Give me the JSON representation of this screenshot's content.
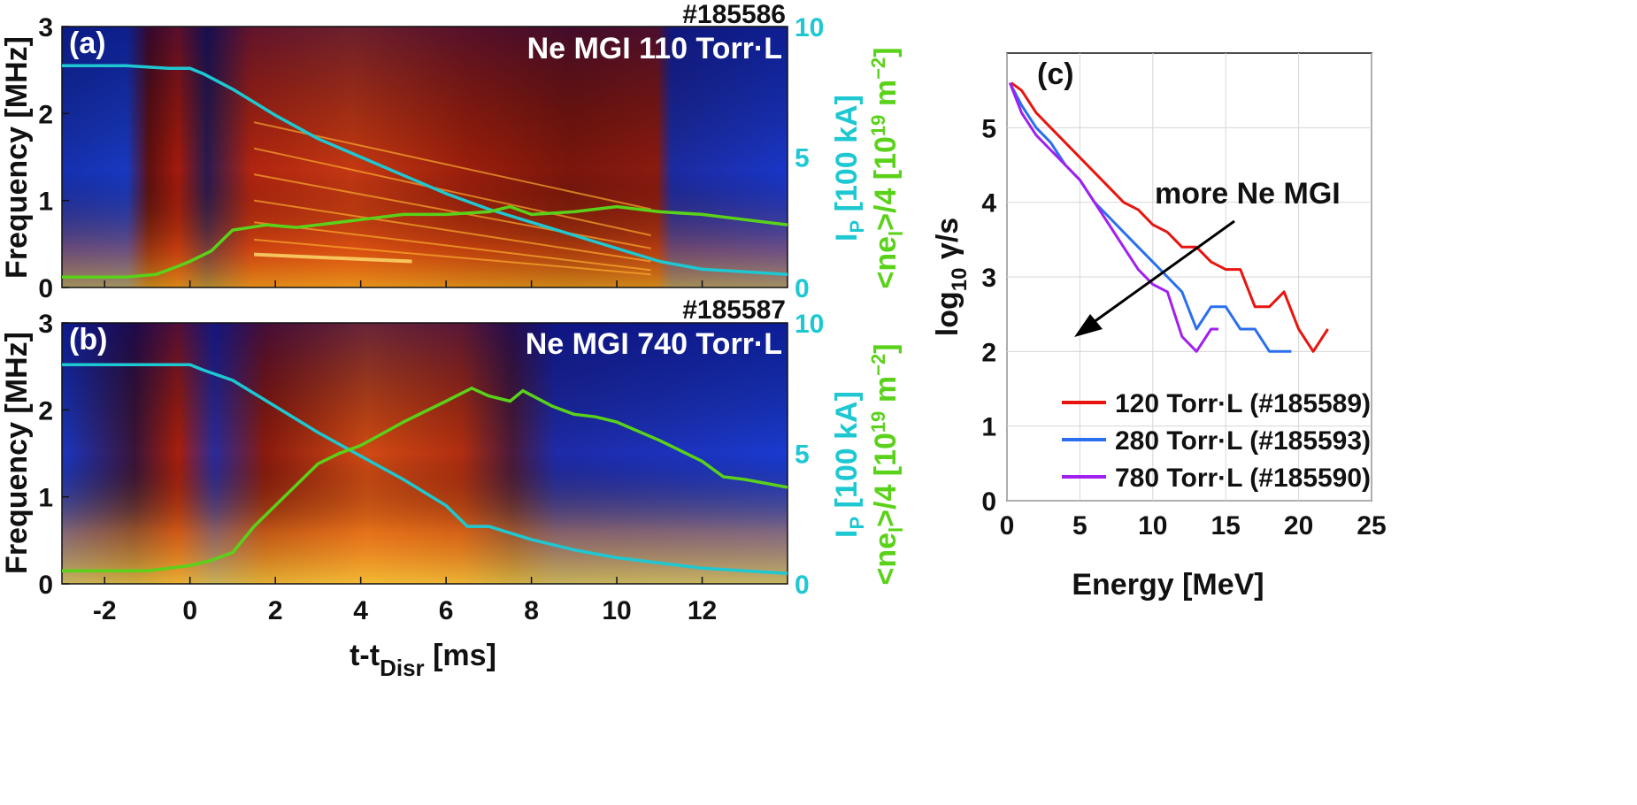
{
  "chart_data": [
    {
      "type": "heatmap",
      "panel_label": "(a)",
      "shot": "#185586",
      "annotation": "Ne MGI 110 Torr·L",
      "xlabel_main": "t-t",
      "xlabel_sub": "Disr",
      "xlabel_unit": " [ms]",
      "ylabel": "Frequency [MHz]",
      "xlim": [
        -3,
        14
      ],
      "ylim": [
        0,
        3
      ],
      "xticks": [
        "-2",
        "0",
        "2",
        "4",
        "6",
        "8",
        "10",
        "12"
      ],
      "xtick_values": [
        -2,
        0,
        2,
        4,
        6,
        8,
        10,
        12
      ],
      "yticks": [
        "0",
        "1",
        "2",
        "3"
      ],
      "ytick_values": [
        0,
        1,
        2,
        3
      ],
      "y2ticks": [
        "0",
        "5",
        "10"
      ],
      "y2tick_values": [
        0,
        5,
        10
      ],
      "y2lim": [
        0,
        10
      ],
      "y2label_ip": "I",
      "y2label_ip_sub": "P",
      "y2label_ip_unit": " [100 kA]",
      "y2label_ne": "<ne",
      "y2label_ne_sub": "l",
      "y2label_ne_rest": ">/4 [10",
      "y2label_ne_exp": "19",
      "y2label_ne_unit": " m",
      "y2label_ne_exp2": "−2",
      "y2label_ne_close": "]",
      "series": [
        {
          "name": "Ip",
          "color": "#1ec8d2",
          "x": [
            -3,
            -1.5,
            -0.5,
            0,
            0.3,
            1,
            2,
            3,
            4,
            5,
            6,
            7,
            8,
            9,
            10,
            11,
            12,
            13,
            14
          ],
          "y": [
            8.5,
            8.5,
            8.4,
            8.4,
            8.2,
            7.6,
            6.6,
            5.7,
            5.0,
            4.3,
            3.6,
            3.0,
            2.5,
            2.0,
            1.5,
            1.0,
            0.7,
            0.6,
            0.5
          ]
        },
        {
          "name": "ne",
          "color": "#5ad21a",
          "x": [
            -3,
            -1.5,
            -0.8,
            -0.3,
            0,
            0.5,
            1,
            1.8,
            2.5,
            3,
            4,
            5,
            6,
            7,
            7.5,
            8,
            9,
            10,
            10.5,
            11,
            12,
            13,
            14
          ],
          "y": [
            0.4,
            0.4,
            0.5,
            0.8,
            1.0,
            1.4,
            2.2,
            2.4,
            2.3,
            2.4,
            2.6,
            2.8,
            2.8,
            2.9,
            3.1,
            2.8,
            2.9,
            3.1,
            3.0,
            2.9,
            2.8,
            2.6,
            2.4
          ]
        }
      ]
    },
    {
      "type": "heatmap",
      "panel_label": "(b)",
      "shot": "#185587",
      "annotation": "Ne MGI 740 Torr·L",
      "xlabel_main": "t-t",
      "xlabel_sub": "Disr",
      "xlabel_unit": " [ms]",
      "ylabel": "Frequency [MHz]",
      "xlim": [
        -3,
        14
      ],
      "ylim": [
        0,
        3
      ],
      "xticks": [
        "-2",
        "0",
        "2",
        "4",
        "6",
        "8",
        "10",
        "12"
      ],
      "xtick_values": [
        -2,
        0,
        2,
        4,
        6,
        8,
        10,
        12
      ],
      "yticks": [
        "0",
        "1",
        "2",
        "3"
      ],
      "ytick_values": [
        0,
        1,
        2,
        3
      ],
      "y2ticks": [
        "0",
        "5",
        "10"
      ],
      "y2tick_values": [
        0,
        5,
        10
      ],
      "y2lim": [
        0,
        10
      ],
      "y2label_ip": "I",
      "y2label_ip_sub": "P",
      "y2label_ip_unit": " [100 kA]",
      "y2label_ne": "<ne",
      "y2label_ne_sub": "l",
      "y2label_ne_rest": ">/4 [10",
      "y2label_ne_exp": "19",
      "y2label_ne_unit": " m",
      "y2label_ne_exp2": "−2",
      "y2label_ne_close": "]",
      "series": [
        {
          "name": "Ip",
          "color": "#1ec8d2",
          "x": [
            -3,
            -1.5,
            -0.5,
            0,
            0.3,
            1,
            2,
            3,
            4,
            5,
            6,
            6.5,
            7,
            8,
            9,
            10,
            11,
            12,
            13,
            14
          ],
          "y": [
            8.4,
            8.4,
            8.4,
            8.4,
            8.2,
            7.8,
            6.8,
            5.8,
            4.9,
            4.0,
            3.0,
            2.2,
            2.2,
            1.7,
            1.3,
            1.0,
            0.8,
            0.6,
            0.5,
            0.4
          ]
        },
        {
          "name": "ne",
          "color": "#5ad21a",
          "x": [
            -3,
            -1,
            0,
            0.5,
            1,
            1.5,
            2,
            2.5,
            3,
            3.5,
            4,
            5,
            6,
            6.6,
            7,
            7.5,
            7.8,
            8.5,
            9,
            9.5,
            10,
            11,
            12,
            12.5,
            13,
            14
          ],
          "y": [
            0.5,
            0.5,
            0.7,
            0.9,
            1.2,
            2.2,
            3.0,
            3.8,
            4.6,
            5.0,
            5.3,
            6.2,
            7.0,
            7.5,
            7.2,
            7.0,
            7.4,
            6.8,
            6.5,
            6.4,
            6.2,
            5.5,
            4.7,
            4.1,
            4.0,
            3.7
          ]
        }
      ]
    },
    {
      "type": "line",
      "panel_label": "(c)",
      "xlabel": "Energy [MeV]",
      "ylabel_main": "log",
      "ylabel_sub": "10",
      "ylabel_rest": " γ/s",
      "xlim": [
        0,
        25
      ],
      "ylim": [
        0,
        6
      ],
      "xticks": [
        "0",
        "5",
        "10",
        "15",
        "20",
        "25"
      ],
      "xtick_values": [
        0,
        5,
        10,
        15,
        20,
        25
      ],
      "yticks": [
        "0",
        "1",
        "2",
        "3",
        "4",
        "5"
      ],
      "ytick_values": [
        0,
        1,
        2,
        3,
        4,
        5
      ],
      "grid": true,
      "annotation": "more Ne MGI",
      "series": [
        {
          "name": "120 Torr·L (#185589)",
          "color": "#e8140f",
          "x": [
            0.3,
            1,
            2,
            3,
            4,
            5,
            6,
            7,
            8,
            9,
            10,
            11,
            12,
            13,
            14,
            15,
            16,
            17,
            18,
            19,
            20,
            21,
            22
          ],
          "y": [
            5.6,
            5.5,
            5.2,
            5.0,
            4.8,
            4.6,
            4.4,
            4.2,
            4.0,
            3.9,
            3.7,
            3.6,
            3.4,
            3.4,
            3.2,
            3.1,
            3.1,
            2.6,
            2.6,
            2.8,
            2.3,
            2.0,
            2.3
          ]
        },
        {
          "name": "280 Torr·L (#185593)",
          "color": "#2a6ff0",
          "x": [
            0.2,
            1,
            2,
            3,
            4,
            5,
            6,
            7,
            8,
            9,
            10,
            11,
            12,
            13,
            14,
            15,
            16,
            17,
            18,
            19,
            19.5
          ],
          "y": [
            5.6,
            5.3,
            5.0,
            4.8,
            4.5,
            4.3,
            4.0,
            3.8,
            3.6,
            3.4,
            3.2,
            3.0,
            2.8,
            2.3,
            2.6,
            2.6,
            2.3,
            2.3,
            2.0,
            2.0,
            2.0
          ]
        },
        {
          "name": "780 Torr·L (#185590)",
          "color": "#a020f0",
          "x": [
            0.2,
            1,
            2,
            3,
            4,
            5,
            6,
            7,
            8,
            9,
            10,
            11,
            12,
            13,
            14,
            14.5
          ],
          "y": [
            5.6,
            5.2,
            4.9,
            4.7,
            4.5,
            4.3,
            4.0,
            3.7,
            3.4,
            3.1,
            2.9,
            2.8,
            2.2,
            2.0,
            2.3,
            2.3
          ]
        }
      ]
    }
  ]
}
